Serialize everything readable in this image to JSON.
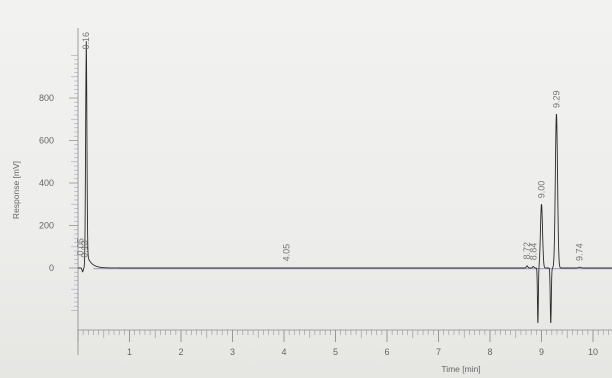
{
  "chart_data": {
    "type": "line",
    "title": "",
    "xlabel": "Time [min]",
    "ylabel": "Response [mV]",
    "xlim": [
      0,
      10.8
    ],
    "ylim": [
      -250,
      1100
    ],
    "x_ticks": [
      1,
      2,
      3,
      4,
      5,
      6,
      7,
      8,
      9,
      10
    ],
    "y_ticks": [
      0,
      200,
      400,
      600,
      800
    ],
    "grid": false,
    "legend": "none",
    "colors": {
      "trace": "#2a2a2a",
      "baseline": "#7c6fb0",
      "axis": "#8a8a8a"
    },
    "peaks": [
      {
        "label": "0.16",
        "time": 0.16,
        "height": 1000
      },
      {
        "label": "9.29",
        "time": 9.29,
        "height": 725
      },
      {
        "label": "9.00",
        "time": 9.0,
        "height": 300
      },
      {
        "label": "8.72",
        "time": 8.72,
        "height": 12
      },
      {
        "label": "8.84",
        "time": 8.84,
        "height": 8
      },
      {
        "label": "9.74",
        "time": 9.74,
        "height": 5
      },
      {
        "label": "4.05",
        "time": 4.05,
        "height": 3
      },
      {
        "label": "0.05",
        "time": 0.05,
        "height": 30
      },
      {
        "label": "0.13",
        "time": 0.13,
        "height": 20
      }
    ]
  }
}
